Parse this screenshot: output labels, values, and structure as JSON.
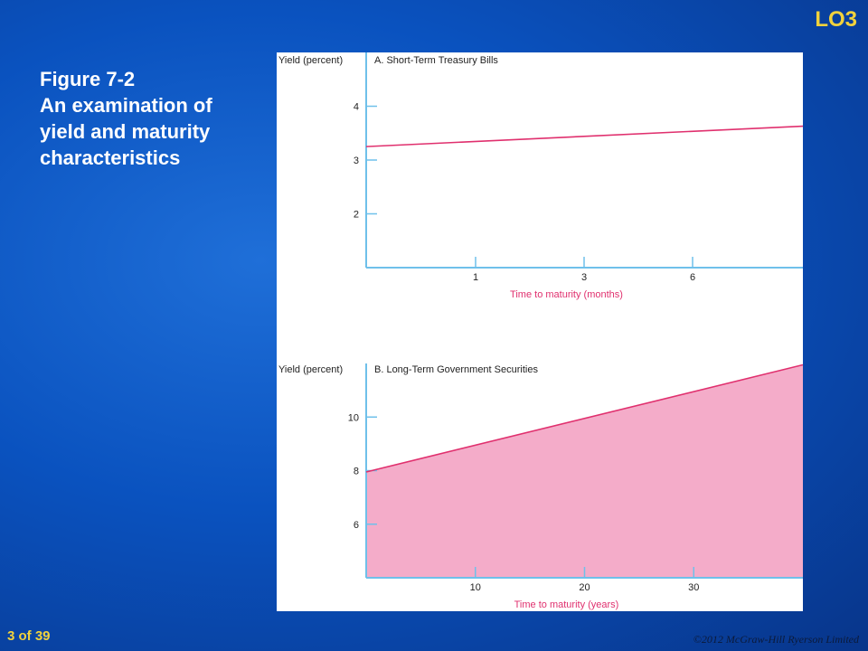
{
  "slide": {
    "lo_badge": "LO3",
    "title_lines": [
      "Figure 7-2",
      "An examination of",
      "yield and maturity",
      "characteristics"
    ],
    "page": "3 of 39",
    "copyright": "©2012 McGraw-Hill Ryerson Limited"
  },
  "colors": {
    "line": "#e0306e",
    "fill": "#f4acc9",
    "axis": "#6fc0ea",
    "axis_text": "#e0306e"
  },
  "chart_data": [
    {
      "type": "line",
      "title": "A. Short-Term Treasury Bills",
      "ylabel": "Yield (percent)",
      "xlabel": "Time to maturity (months)",
      "x_categories": [
        "1",
        "3",
        "6"
      ],
      "y_ticks": [
        2,
        3,
        4
      ],
      "ylim": [
        1,
        5
      ],
      "series": [
        {
          "x": [
            0,
            4
          ],
          "y": [
            3.25,
            3.63
          ]
        }
      ],
      "filled": false,
      "grid": false
    },
    {
      "type": "area",
      "title": "B. Long-Term Government Securities",
      "ylabel": "Yield (percent)",
      "xlabel": "Time to maturity (years)",
      "x_ticks": [
        10,
        20,
        30
      ],
      "xlim": [
        0,
        40
      ],
      "y_ticks": [
        6,
        8,
        10
      ],
      "ylim": [
        4,
        12
      ],
      "series": [
        {
          "x": [
            0,
            40
          ],
          "y": [
            7.95,
            11.95
          ]
        }
      ],
      "filled": true,
      "grid": false
    }
  ]
}
